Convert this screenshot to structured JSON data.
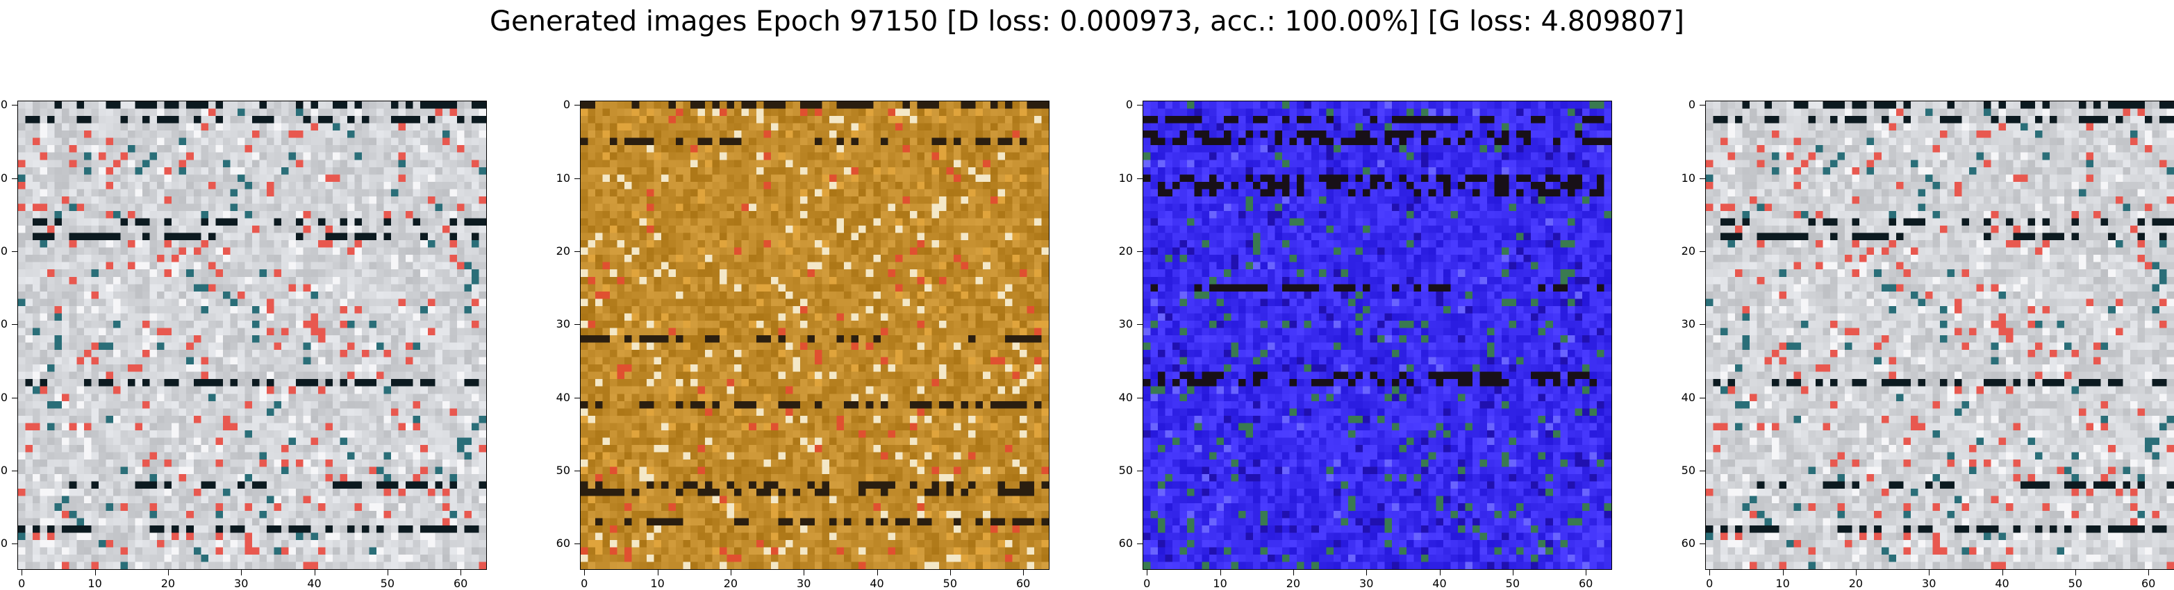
{
  "figure": {
    "title": "Generated images Epoch 97150 [D loss: 0.000973, acc.: 100.00%] [G loss: 4.809807]"
  },
  "panels": [
    {
      "name": "generated-image-1",
      "base_color": "#d2d4d8",
      "accents": [
        "#e8584f",
        "#0c1a20",
        "#2a6e78",
        "#f6f6f8"
      ]
    },
    {
      "name": "generated-image-2",
      "base_color": "#c08a2a",
      "accents": [
        "#e0a43c",
        "#2a1e10",
        "#e05030",
        "#f4e8c8"
      ]
    },
    {
      "name": "generated-image-3",
      "base_color": "#3a2cf0",
      "accents": [
        "#2010b0",
        "#181018",
        "#6a64ff",
        "#3a7a50"
      ]
    },
    {
      "name": "generated-image-4",
      "base_color": "#d2d4d8",
      "accents": [
        "#e8584f",
        "#0c1a20",
        "#2a6e78",
        "#f6f6f8"
      ]
    }
  ],
  "axes": {
    "x_ticks": [
      "0",
      "10",
      "20",
      "30",
      "40",
      "50",
      "60"
    ],
    "y_ticks": [
      "0",
      "10",
      "20",
      "30",
      "40",
      "50",
      "60"
    ],
    "xlim": [
      -0.5,
      63.5
    ],
    "ylim": [
      63.5,
      -0.5
    ]
  }
}
